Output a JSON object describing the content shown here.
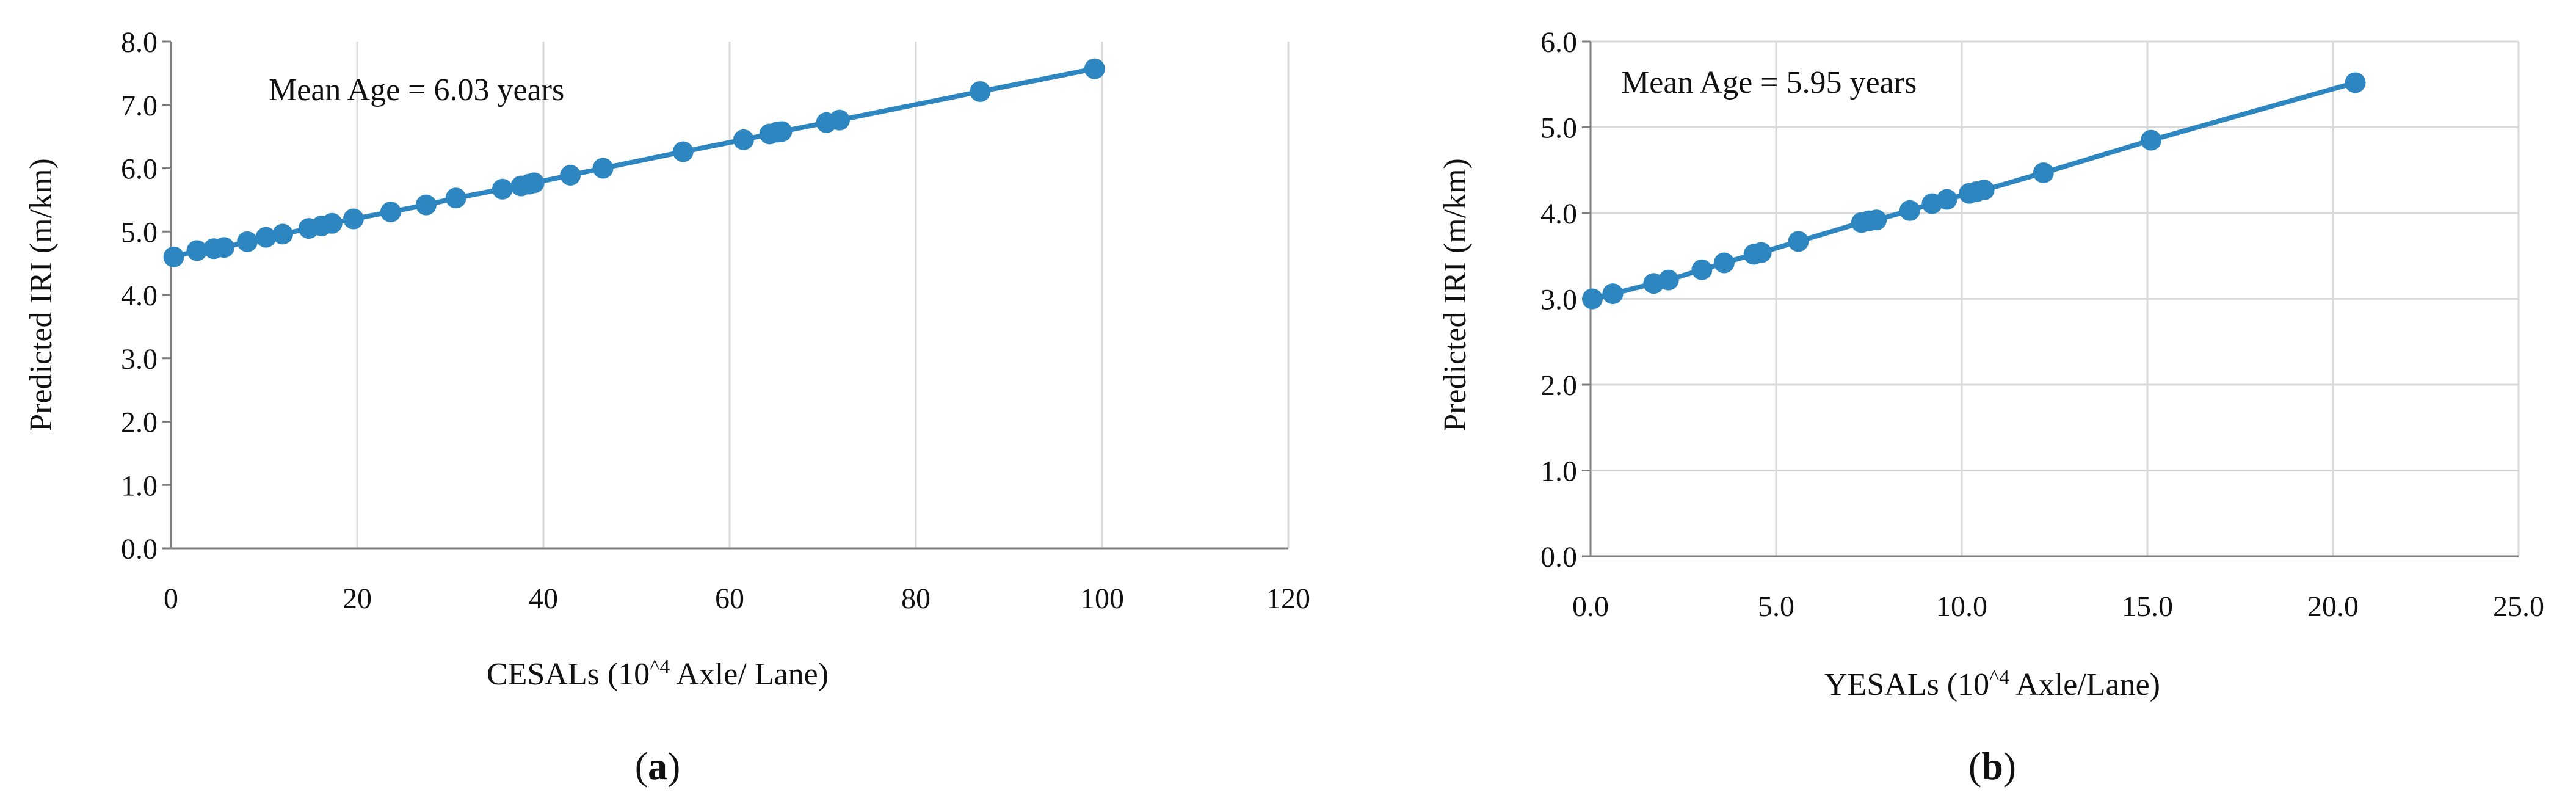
{
  "chart_data": [
    {
      "type": "line",
      "panel_label": "a",
      "annotation": "Mean Age = 6.03 years",
      "xlabel": "CESALs (10^4 Axle/ Lane)",
      "xlabel_parts": {
        "before": "CESALs (10",
        "superscript": "^4",
        "after": " Axle/ Lane)"
      },
      "ylabel": "Predicted IRI (m/km)",
      "xlim": [
        0,
        120
      ],
      "ylim": [
        0,
        8
      ],
      "xticks": [
        0,
        20,
        40,
        60,
        80,
        100,
        120
      ],
      "yticks": [
        0,
        1,
        2,
        3,
        4,
        5,
        6,
        7,
        8
      ],
      "xtick_labels": [
        "0",
        "20",
        "40",
        "60",
        "80",
        "100",
        "120"
      ],
      "ytick_labels": [
        "0.0",
        "1.0",
        "2.0",
        "3.0",
        "4.0",
        "5.0",
        "6.0",
        "7.0",
        "8.0"
      ],
      "grid": "vertical",
      "series": [
        {
          "color": "#2e86c1",
          "points": [
            [
              0.3,
              4.6
            ],
            [
              2.8,
              4.7
            ],
            [
              4.6,
              4.73
            ],
            [
              5.7,
              4.75
            ],
            [
              8.2,
              4.84
            ],
            [
              10.2,
              4.91
            ],
            [
              12.0,
              4.96
            ],
            [
              14.8,
              5.05
            ],
            [
              16.2,
              5.09
            ],
            [
              17.3,
              5.13
            ],
            [
              19.6,
              5.2
            ],
            [
              23.6,
              5.31
            ],
            [
              27.4,
              5.42
            ],
            [
              30.6,
              5.53
            ],
            [
              35.6,
              5.67
            ],
            [
              37.6,
              5.72
            ],
            [
              38.5,
              5.75
            ],
            [
              39.0,
              5.77
            ],
            [
              42.9,
              5.89
            ],
            [
              46.4,
              6.0
            ],
            [
              55.0,
              6.26
            ],
            [
              61.5,
              6.45
            ],
            [
              64.3,
              6.54
            ],
            [
              65.1,
              6.57
            ],
            [
              65.6,
              6.58
            ],
            [
              70.4,
              6.72
            ],
            [
              71.8,
              6.76
            ],
            [
              86.9,
              7.21
            ],
            [
              99.2,
              7.57
            ]
          ]
        }
      ]
    },
    {
      "type": "line",
      "panel_label": "b",
      "annotation": "Mean Age = 5.95 years",
      "xlabel": "YESALs (10^4 Axle/Lane)",
      "xlabel_parts": {
        "before": "YESALs (10",
        "superscript": "^4",
        "after": " Axle/Lane)"
      },
      "ylabel": "Predicted IRI (m/km)",
      "xlim": [
        0,
        25
      ],
      "ylim": [
        0,
        6
      ],
      "xticks": [
        0,
        5,
        10,
        15,
        20,
        25
      ],
      "yticks": [
        0,
        1,
        2,
        3,
        4,
        5,
        6
      ],
      "xtick_labels": [
        "0.0",
        "5.0",
        "10.0",
        "15.0",
        "20.0",
        "25.0"
      ],
      "ytick_labels": [
        "0.0",
        "1.0",
        "2.0",
        "3.0",
        "4.0",
        "5.0",
        "6.0"
      ],
      "grid": "both",
      "series": [
        {
          "color": "#2e86c1",
          "points": [
            [
              0.05,
              3.0
            ],
            [
              0.6,
              3.06
            ],
            [
              1.7,
              3.18
            ],
            [
              2.1,
              3.22
            ],
            [
              3.0,
              3.34
            ],
            [
              3.6,
              3.42
            ],
            [
              4.4,
              3.52
            ],
            [
              4.6,
              3.54
            ],
            [
              5.6,
              3.67
            ],
            [
              7.3,
              3.89
            ],
            [
              7.5,
              3.91
            ],
            [
              7.7,
              3.92
            ],
            [
              8.6,
              4.03
            ],
            [
              9.2,
              4.11
            ],
            [
              9.6,
              4.16
            ],
            [
              10.2,
              4.23
            ],
            [
              10.4,
              4.25
            ],
            [
              10.6,
              4.27
            ],
            [
              12.2,
              4.47
            ],
            [
              15.1,
              4.85
            ],
            [
              20.6,
              5.52
            ]
          ]
        }
      ]
    }
  ]
}
